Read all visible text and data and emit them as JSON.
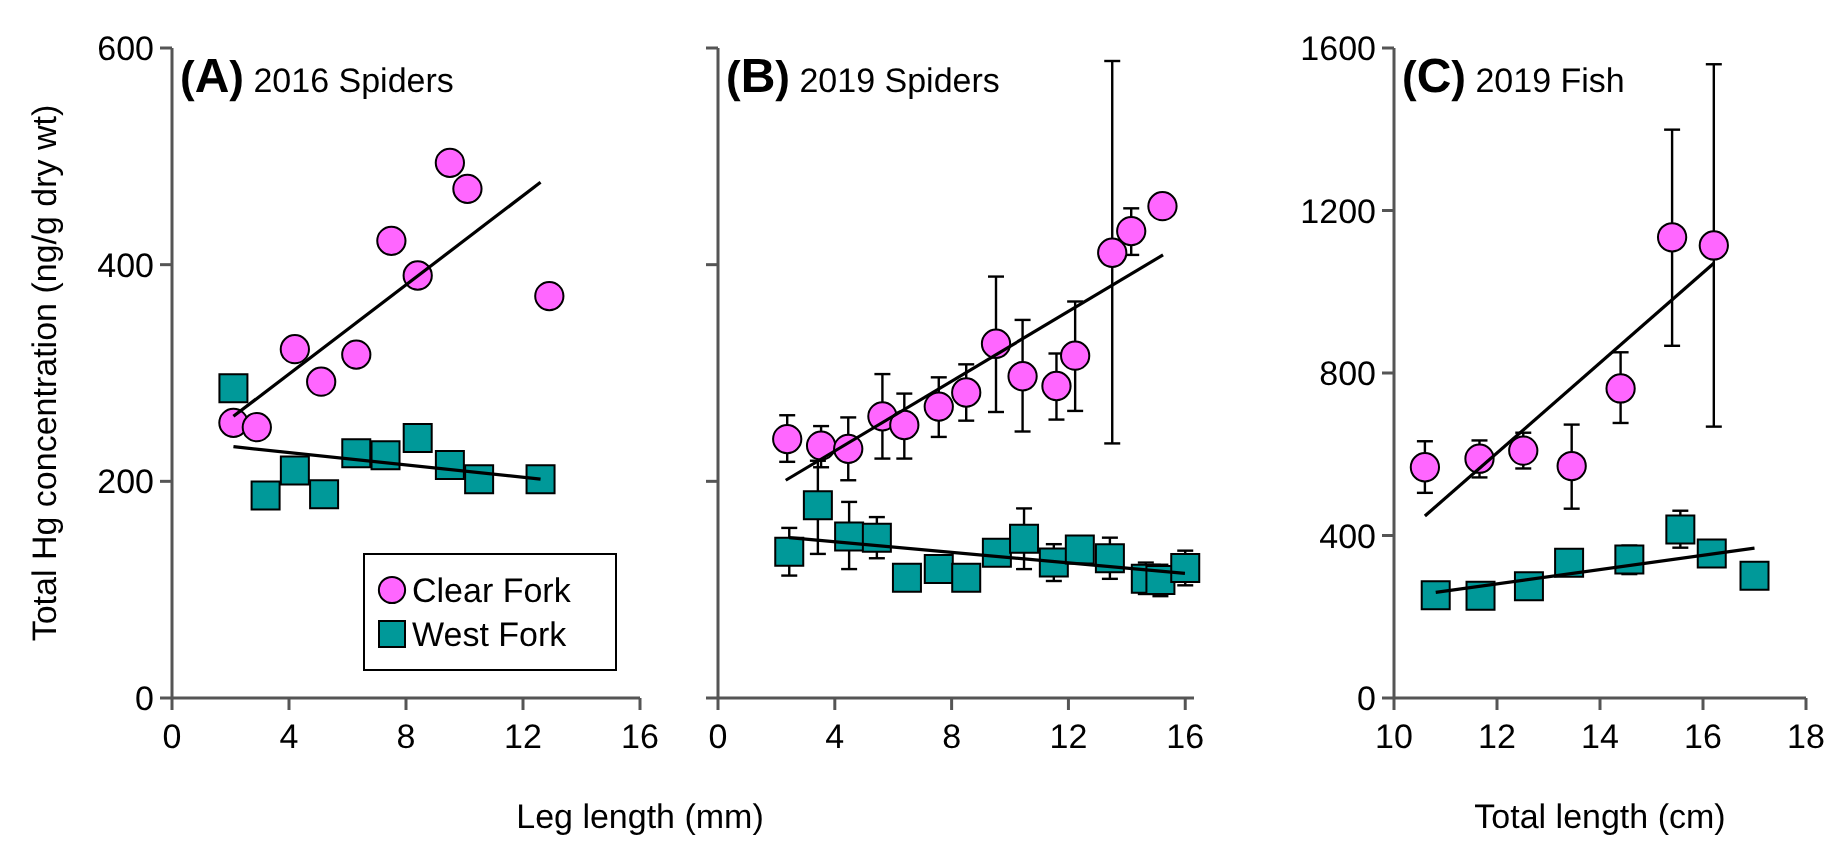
{
  "chart_data": [
    {
      "type": "scatter",
      "title": "(A) 2016 Spiders",
      "xlabel": "Leg length (mm)",
      "ylabel": "Total Hg concentration (ng/g dry wt)",
      "xlim": [
        0,
        16
      ],
      "xticks": [
        0,
        4,
        8,
        12,
        16
      ],
      "ylim": [
        0,
        600
      ],
      "yticks": [
        0,
        200,
        400,
        600
      ],
      "grid": false,
      "legend": "bottom right",
      "series": [
        {
          "name": "Clear Fork",
          "type": "scatter",
          "marker": "circle",
          "color": "#ff66ff",
          "x": [
            2.1,
            2.9,
            4.2,
            5.1,
            6.3,
            7.5,
            8.4,
            9.5,
            10.1,
            12.9
          ],
          "values": [
            254,
            250,
            322,
            292,
            317,
            422,
            390,
            494,
            470,
            371
          ]
        },
        {
          "name": "West Fork",
          "type": "scatter",
          "marker": "square",
          "color": "#009999",
          "x": [
            2.1,
            3.2,
            4.2,
            5.2,
            6.3,
            7.3,
            8.4,
            9.5,
            10.5,
            12.6
          ],
          "values": [
            286,
            187,
            210,
            188,
            226,
            224,
            240,
            215,
            202,
            202
          ]
        },
        {
          "type": "line",
          "marker": "none",
          "color": "#000000",
          "x": [
            2.1,
            12.6
          ],
          "values": [
            260,
            476
          ]
        },
        {
          "type": "line",
          "marker": "none",
          "color": "#000000",
          "x": [
            2.1,
            12.6
          ],
          "values": [
            232,
            202
          ]
        }
      ]
    },
    {
      "type": "scatter",
      "title": "(B) 2019 Spiders",
      "xlim": [
        0,
        16.3
      ],
      "xticks": [
        0,
        4,
        8,
        12,
        16
      ],
      "ylim": [
        0,
        600
      ],
      "yticks": [
        {
          "value": 0,
          "label": null
        },
        {
          "value": 200,
          "label": null
        },
        {
          "value": 400,
          "label": null
        },
        {
          "value": 600,
          "label": null
        }
      ],
      "tick_labels": "x",
      "grid": false,
      "legend": false,
      "series": [
        {
          "type": "scatter",
          "marker": "circle",
          "color": "#ff66ff",
          "x": [
            2.37,
            3.53,
            4.46,
            5.63,
            6.38,
            7.56,
            8.5,
            9.52,
            10.43,
            11.59,
            12.23,
            13.5,
            14.15,
            15.22
          ],
          "values": [
            239,
            233,
            230,
            260,
            252,
            269,
            282,
            327,
            297,
            288,
            316,
            411,
            431,
            454
          ],
          "errors": [
            [
              218,
              261
            ],
            [
              213,
              251
            ],
            [
              201,
              259
            ],
            [
              221,
              299
            ],
            [
              221,
              281
            ],
            [
              241,
              296
            ],
            [
              256,
              308
            ],
            [
              264,
              389
            ],
            [
              246,
              349
            ],
            [
              257,
              318
            ],
            [
              265,
              366
            ],
            [
              235,
              588
            ],
            [
              409,
              452
            ],
            null
          ]
        },
        {
          "type": "scatter",
          "marker": "square",
          "color": "#009999",
          "x": [
            2.44,
            3.42,
            4.49,
            5.44,
            6.47,
            7.56,
            8.5,
            9.55,
            10.48,
            11.5,
            12.39,
            13.42,
            14.65,
            15.15,
            16.0
          ],
          "values": [
            135,
            178,
            149,
            148,
            111,
            119,
            111,
            134,
            147,
            125,
            137,
            129,
            110,
            109,
            120
          ],
          "errors": [
            [
              113,
              157
            ],
            [
              133,
              219
            ],
            [
              119,
              181
            ],
            [
              129,
              167
            ],
            null,
            [
              108,
              128
            ],
            null,
            [
              125,
              142
            ],
            [
              119,
              175
            ],
            [
              108,
              142
            ],
            [
              128,
              146
            ],
            [
              110,
              148
            ],
            [
              96,
              125
            ],
            [
              94,
              123
            ],
            [
              104,
              136
            ]
          ]
        },
        {
          "type": "line",
          "marker": "none",
          "color": "#000000",
          "x": [
            2.32,
            15.24
          ],
          "values": [
            201,
            409
          ]
        },
        {
          "type": "line",
          "marker": "none",
          "color": "#000000",
          "x": [
            2.44,
            15.99
          ],
          "values": [
            148,
            115
          ]
        }
      ]
    },
    {
      "type": "scatter",
      "title": "(C) 2019 Fish",
      "xlabel": "Total length (cm)",
      "xlim": [
        10,
        18
      ],
      "xticks": [
        10,
        12,
        14,
        16,
        18
      ],
      "ylim": [
        0,
        1600
      ],
      "yticks": [
        0,
        400,
        800,
        1200,
        1600
      ],
      "grid": false,
      "legend": false,
      "series": [
        {
          "type": "scatter",
          "marker": "circle",
          "color": "#ff66ff",
          "x": [
            10.6,
            11.66,
            12.51,
            13.45,
            14.4,
            15.4,
            16.21
          ],
          "values": [
            568,
            589,
            609,
            571,
            762,
            1134,
            1114
          ],
          "errors": [
            [
              505,
              632
            ],
            [
              543,
              634
            ],
            [
              565,
              653
            ],
            [
              466,
              673
            ],
            [
              677,
              851
            ],
            [
              867,
              1399
            ],
            [
              668,
              1560
            ]
          ]
        },
        {
          "type": "scatter",
          "marker": "square",
          "color": "#009999",
          "x": [
            10.81,
            11.68,
            12.62,
            13.4,
            14.57,
            15.56,
            16.17,
            17.0
          ],
          "values": [
            253,
            252,
            275,
            333,
            341,
            415,
            356,
            301
          ],
          "errors": [
            null,
            null,
            null,
            null,
            [
              305,
              375
            ],
            [
              370,
              461
            ],
            null,
            null
          ]
        },
        {
          "type": "line",
          "marker": "none",
          "color": "#000000",
          "x": [
            10.6,
            16.21
          ],
          "values": [
            448,
            1070
          ]
        },
        {
          "type": "line",
          "marker": "none",
          "color": "#000000",
          "x": [
            10.81,
            17.0
          ],
          "values": [
            260,
            369
          ]
        }
      ]
    }
  ]
}
